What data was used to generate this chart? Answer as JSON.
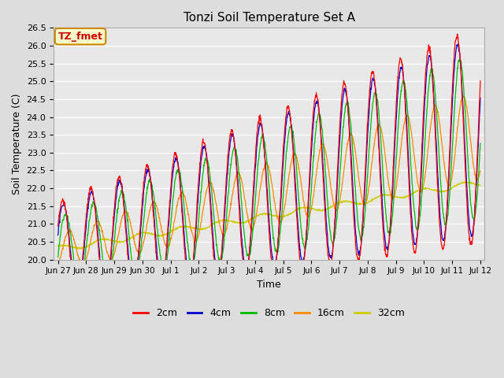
{
  "title": "Tonzi Soil Temperature Set A",
  "xlabel": "Time",
  "ylabel": "Soil Temperature (C)",
  "ylim": [
    20.0,
    26.5
  ],
  "annotation_text": "TZ_fmet",
  "annotation_bg": "#ffffcc",
  "annotation_border": "#cc8800",
  "annotation_text_color": "#cc0000",
  "tick_labels": [
    "Jun 27",
    "Jun 28",
    "Jun 29",
    "Jun 30",
    "Jul 1",
    "Jul 2",
    "Jul 3",
    "Jul 4",
    "Jul 5",
    "Jul 6",
    "Jul 7",
    "Jul 8",
    "Jul 9",
    "Jul 10",
    "Jul 11",
    "Jul 12"
  ],
  "legend_labels": [
    "2cm",
    "4cm",
    "8cm",
    "16cm",
    "32cm"
  ],
  "line_colors": [
    "#ff0000",
    "#0000cc",
    "#00bb00",
    "#ff8800",
    "#cccc00"
  ],
  "bg_color": "#dddddd",
  "plot_bg_color": "#e8e8e8",
  "grid_color": "#ffffff",
  "yticks": [
    20.0,
    20.5,
    21.0,
    21.5,
    22.0,
    22.5,
    23.0,
    23.5,
    24.0,
    24.5,
    25.0,
    25.5,
    26.0,
    26.5
  ]
}
